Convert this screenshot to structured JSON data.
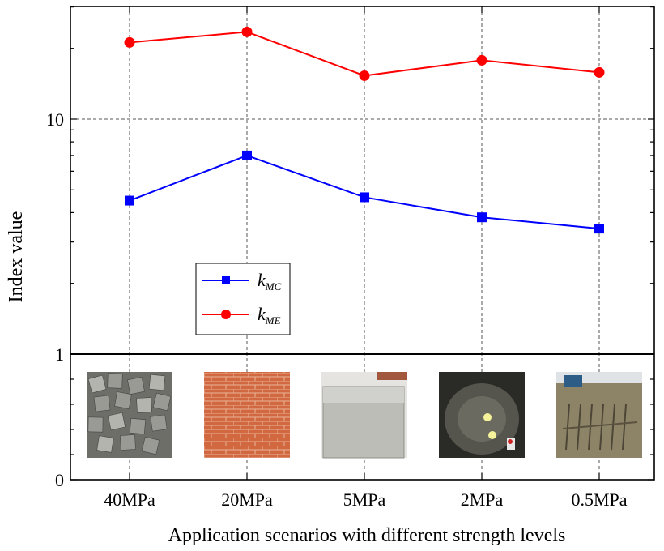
{
  "chart_data": {
    "type": "line",
    "categories": [
      "40MPa",
      "20MPa",
      "5MPa",
      "2MPa",
      "0.5MPa"
    ],
    "xlabel": "Application scenarios with different strength levels",
    "ylabel": "Index value",
    "yscale": "log",
    "ylim": [
      1,
      30
    ],
    "yticks": [
      {
        "value": 1,
        "label": "1"
      },
      {
        "value": 10,
        "label": "10"
      }
    ],
    "series": [
      {
        "name": "kMC",
        "label_main": "k",
        "label_sub": "MC",
        "color": "#0000ff",
        "marker": "square",
        "values": [
          4.5,
          7.0,
          4.65,
          3.82,
          3.42
        ]
      },
      {
        "name": "kME",
        "label_main": "k",
        "label_sub": "ME",
        "color": "#ff0000",
        "marker": "circle",
        "values": [
          21.2,
          23.5,
          15.3,
          17.8,
          15.8
        ]
      }
    ],
    "legend_position": "lower-left",
    "grid": "dashed vertical at categories, dashed horizontal at 10"
  },
  "lower_panel": {
    "yticks": [
      {
        "value": 0,
        "label": "0"
      },
      {
        "value": 1,
        "label": "1"
      }
    ],
    "images": [
      {
        "category": "40MPa",
        "scene": "concrete-blocks"
      },
      {
        "category": "20MPa",
        "scene": "brick-wall"
      },
      {
        "category": "5MPa",
        "scene": "concrete-cube"
      },
      {
        "category": "2MPa",
        "scene": "tunnel-face"
      },
      {
        "category": "0.5MPa",
        "scene": "construction-site"
      }
    ]
  },
  "colors": {
    "mc": "#0000ff",
    "me": "#ff0000",
    "axis": "#000000",
    "grid": "#555555"
  }
}
